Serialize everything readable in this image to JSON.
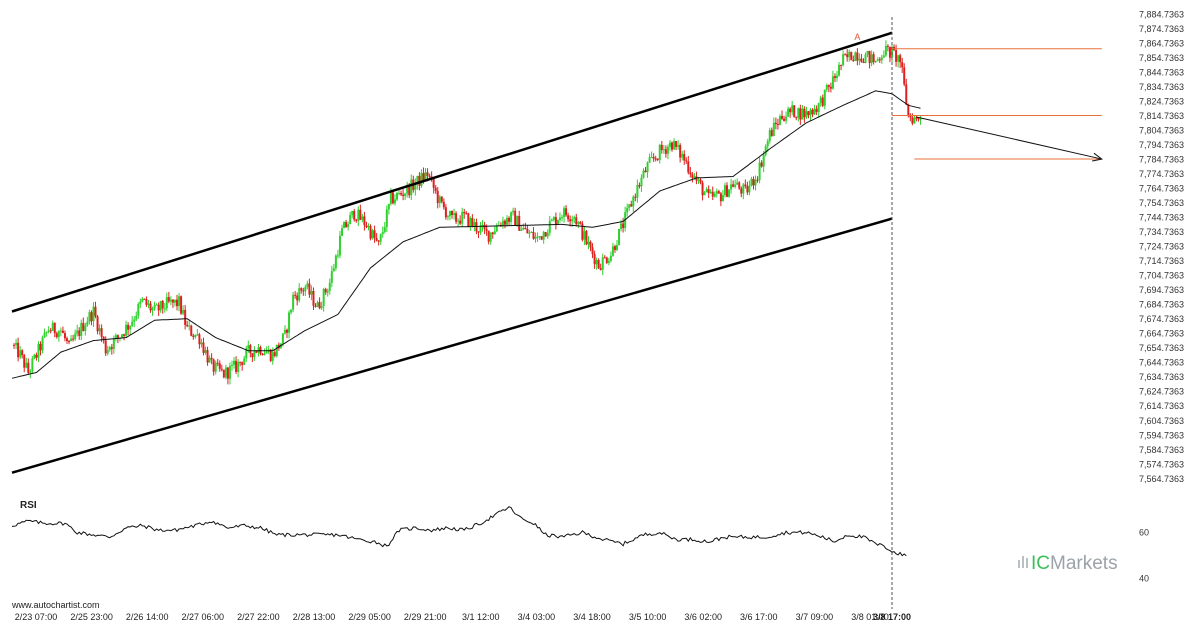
{
  "watermark": "www.autochartist.com",
  "brand": {
    "prefix": "IC",
    "name": "Markets"
  },
  "rsi_label": "RSI",
  "pattern_point_label": "A",
  "colors": {
    "up_candle": "#2fd12f",
    "down_candle": "#dd1f1f",
    "channel": "#000000",
    "level": "#e8703a",
    "ma": "#111111"
  },
  "chart_data": [
    {
      "type": "candlestick",
      "title": "",
      "xlabel": "",
      "ylabel": "",
      "ylim": [
        7557.7363,
        7889.7363
      ],
      "y_ticks": [
        "7,884.7363",
        "7,874.7363",
        "7,864.7363",
        "7,854.7363",
        "7,844.7363",
        "7,834.7363",
        "7,824.7363",
        "7,814.7363",
        "7,804.7363",
        "7,794.7363",
        "7,784.7363",
        "7,774.7363",
        "7,764.7363",
        "7,754.7363",
        "7,744.7363",
        "7,734.7363",
        "7,724.7363",
        "7,714.7363",
        "7,704.7363",
        "7,694.7363",
        "7,684.7363",
        "7,674.7363",
        "7,664.7363",
        "7,654.7363",
        "7,644.7363",
        "7,634.7363",
        "7,624.7363",
        "7,614.7363",
        "7,604.7363",
        "7,594.7363",
        "7,584.7363",
        "7,574.7363",
        "7,564.7363"
      ],
      "x_ticks": [
        "2/23 07:00",
        "2/25 23:00",
        "2/26 14:00",
        "2/27 06:00",
        "2/27 22:00",
        "2/28 13:00",
        "2/29 05:00",
        "2/29 21:00",
        "3/1 12:00",
        "3/4 03:00",
        "3/4 18:00",
        "3/5 10:00",
        "3/6 02:00",
        "3/6 17:00",
        "3/7 09:00",
        "3/8 01:00",
        "3/8 17:00"
      ],
      "current_time_label": "3/8 17:00",
      "close_anchors": [
        [
          0,
          7657
        ],
        [
          4,
          7650
        ],
        [
          8,
          7638
        ],
        [
          12,
          7650
        ],
        [
          18,
          7668
        ],
        [
          24,
          7667
        ],
        [
          28,
          7655
        ],
        [
          32,
          7664
        ],
        [
          36,
          7673
        ],
        [
          40,
          7680
        ],
        [
          46,
          7654
        ],
        [
          52,
          7662
        ],
        [
          58,
          7672
        ],
        [
          64,
          7687
        ],
        [
          70,
          7680
        ],
        [
          76,
          7685
        ],
        [
          82,
          7686
        ],
        [
          86,
          7668
        ],
        [
          92,
          7662
        ],
        [
          98,
          7642
        ],
        [
          104,
          7637
        ],
        [
          110,
          7642
        ],
        [
          116,
          7652
        ],
        [
          122,
          7655
        ],
        [
          128,
          7650
        ],
        [
          134,
          7663
        ],
        [
          138,
          7690
        ],
        [
          144,
          7697
        ],
        [
          150,
          7683
        ],
        [
          156,
          7700
        ],
        [
          162,
          7735
        ],
        [
          168,
          7748
        ],
        [
          174,
          7740
        ],
        [
          180,
          7725
        ],
        [
          186,
          7757
        ],
        [
          192,
          7762
        ],
        [
          198,
          7768
        ],
        [
          204,
          7775
        ],
        [
          210,
          7755
        ],
        [
          216,
          7743
        ],
        [
          222,
          7745
        ],
        [
          228,
          7738
        ],
        [
          234,
          7733
        ],
        [
          240,
          7742
        ],
        [
          246,
          7745
        ],
        [
          252,
          7735
        ],
        [
          258,
          7730
        ],
        [
          264,
          7740
        ],
        [
          270,
          7748
        ],
        [
          276,
          7746
        ],
        [
          282,
          7728
        ],
        [
          288,
          7712
        ],
        [
          294,
          7720
        ],
        [
          300,
          7740
        ],
        [
          306,
          7762
        ],
        [
          312,
          7780
        ],
        [
          318,
          7790
        ],
        [
          324,
          7796
        ],
        [
          330,
          7785
        ],
        [
          336,
          7770
        ],
        [
          342,
          7758
        ],
        [
          348,
          7760
        ],
        [
          354,
          7768
        ],
        [
          360,
          7762
        ],
        [
          366,
          7775
        ],
        [
          372,
          7802
        ],
        [
          378,
          7815
        ],
        [
          384,
          7818
        ],
        [
          390,
          7816
        ],
        [
          396,
          7822
        ],
        [
          402,
          7836
        ],
        [
          408,
          7853
        ],
        [
          414,
          7858
        ],
        [
          420,
          7855
        ],
        [
          424,
          7852
        ],
        [
          428,
          7860
        ],
        [
          432,
          7858
        ],
        [
          436,
          7853
        ],
        [
          440,
          7815
        ],
        [
          444,
          7812
        ],
        [
          446,
          7815
        ]
      ],
      "moving_average_anchors": [
        [
          0,
          7634
        ],
        [
          12,
          7638
        ],
        [
          24,
          7652
        ],
        [
          40,
          7660
        ],
        [
          56,
          7662
        ],
        [
          70,
          7674
        ],
        [
          86,
          7675
        ],
        [
          100,
          7662
        ],
        [
          116,
          7653
        ],
        [
          128,
          7653
        ],
        [
          144,
          7667
        ],
        [
          160,
          7678
        ],
        [
          176,
          7710
        ],
        [
          192,
          7728
        ],
        [
          210,
          7738
        ],
        [
          240,
          7739
        ],
        [
          270,
          7740
        ],
        [
          285,
          7738
        ],
        [
          300,
          7742
        ],
        [
          318,
          7763
        ],
        [
          336,
          7772
        ],
        [
          354,
          7773
        ],
        [
          372,
          7792
        ],
        [
          390,
          7810
        ],
        [
          408,
          7822
        ],
        [
          424,
          7832
        ],
        [
          432,
          7830
        ],
        [
          440,
          7822
        ],
        [
          446,
          7820
        ]
      ],
      "channel_upper": [
        [
          0,
          7680
        ],
        [
          432,
          7872
        ]
      ],
      "channel_lower": [
        [
          0,
          7569
        ],
        [
          432,
          7744
        ]
      ],
      "levels": [
        {
          "from": 432,
          "to": 535,
          "value": 7861
        },
        {
          "from": 432,
          "to": 535,
          "value": 7815
        },
        {
          "from": 443,
          "to": 535,
          "value": 7785
        }
      ],
      "forecast_arrow": [
        [
          444,
          7814
        ],
        [
          535,
          7785
        ]
      ],
      "pattern_point": [
        415,
        7867
      ],
      "current_index": 432
    },
    {
      "type": "line",
      "title": "RSI",
      "ylim": [
        35,
        75
      ],
      "y_ticks": [
        "60",
        "40"
      ],
      "anchors": [
        [
          0,
          63
        ],
        [
          8,
          65
        ],
        [
          16,
          64
        ],
        [
          26,
          64
        ],
        [
          32,
          60
        ],
        [
          40,
          59
        ],
        [
          48,
          58
        ],
        [
          56,
          62
        ],
        [
          64,
          63
        ],
        [
          72,
          61
        ],
        [
          80,
          61
        ],
        [
          90,
          63
        ],
        [
          98,
          65
        ],
        [
          106,
          62
        ],
        [
          114,
          63
        ],
        [
          122,
          62
        ],
        [
          130,
          59
        ],
        [
          138,
          59
        ],
        [
          150,
          59
        ],
        [
          160,
          59
        ],
        [
          170,
          57
        ],
        [
          178,
          56
        ],
        [
          184,
          54
        ],
        [
          190,
          61
        ],
        [
          198,
          62
        ],
        [
          206,
          61
        ],
        [
          214,
          62
        ],
        [
          222,
          61
        ],
        [
          230,
          64
        ],
        [
          238,
          68
        ],
        [
          244,
          71
        ],
        [
          250,
          66
        ],
        [
          256,
          64
        ],
        [
          262,
          59
        ],
        [
          270,
          58
        ],
        [
          280,
          60
        ],
        [
          290,
          57
        ],
        [
          300,
          55
        ],
        [
          310,
          59
        ],
        [
          318,
          60
        ],
        [
          326,
          57
        ],
        [
          334,
          57
        ],
        [
          342,
          56
        ],
        [
          350,
          58
        ],
        [
          360,
          58
        ],
        [
          370,
          58
        ],
        [
          380,
          60
        ],
        [
          390,
          60
        ],
        [
          398,
          58
        ],
        [
          404,
          56
        ],
        [
          410,
          59
        ],
        [
          418,
          58
        ],
        [
          424,
          55
        ],
        [
          428,
          54
        ],
        [
          434,
          51
        ],
        [
          439,
          50
        ]
      ]
    }
  ]
}
